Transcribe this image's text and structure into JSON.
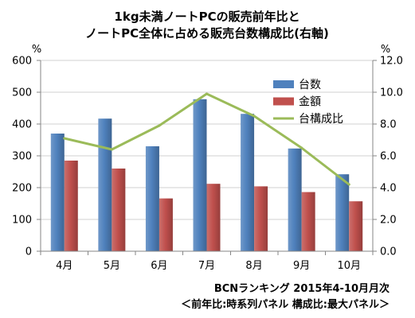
{
  "chart_data": {
    "type": "bar",
    "title": [
      "1kg未満ノートPCの販売前年比と",
      "ノートPC全体に占める販売台数構成比(右軸)"
    ],
    "categories": [
      "4月",
      "5月",
      "6月",
      "7月",
      "8月",
      "9月",
      "10月"
    ],
    "series": [
      {
        "name": "台数",
        "type": "bar",
        "axis": "left",
        "color": "#4F81BD",
        "values": [
          370,
          417,
          330,
          478,
          432,
          323,
          242
        ]
      },
      {
        "name": "金額",
        "type": "bar",
        "axis": "left",
        "color": "#C0504D",
        "values": [
          285,
          260,
          166,
          212,
          204,
          186,
          157
        ]
      },
      {
        "name": "台構成比",
        "type": "line",
        "axis": "right",
        "color": "#9BBB59",
        "values": [
          7.1,
          6.4,
          7.9,
          9.9,
          8.5,
          6.5,
          4.2
        ]
      }
    ],
    "y_left": {
      "label": "%",
      "ylim": [
        0,
        600
      ],
      "ticks": [
        "0",
        "100",
        "200",
        "300",
        "400",
        "500",
        "600"
      ]
    },
    "y_right": {
      "label": "%",
      "ylim": [
        0,
        12
      ],
      "ticks": [
        "0.0",
        "2.0",
        "4.0",
        "6.0",
        "8.0",
        "10.0",
        "12.0"
      ]
    },
    "grid": true,
    "legend": "top-right",
    "annotations": [
      "BCNランキング 2015年4-10月月次",
      "＜前年比:時系列パネル 構成比:最大パネル＞"
    ]
  }
}
